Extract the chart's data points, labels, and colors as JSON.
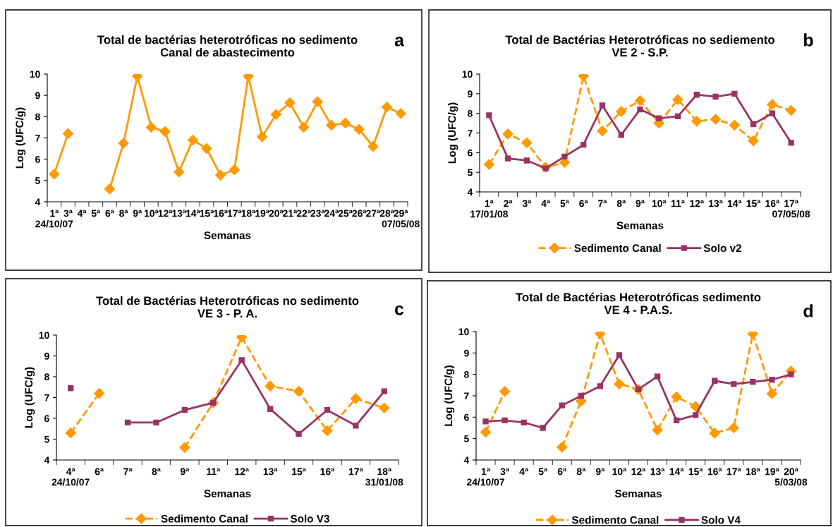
{
  "chart_data": [
    {
      "type": "line",
      "title": "Total de bactérias heterotróficas no sedimento\nCanal de abastecimento",
      "xlabel": "Semanas",
      "ylabel": "Log (UFC/g)",
      "annotations": [
        "a"
      ],
      "categories": [
        "1ª\n24/10/07",
        "3ª",
        "4ª",
        "5ª",
        "6ª",
        "8ª",
        "9ª",
        "10ª",
        "12ª",
        "13ª",
        "14ª",
        "15ª",
        "16ª",
        "17ª",
        "18ª",
        "19ª",
        "20ª",
        "21ª",
        "22ª",
        "23ª",
        "24ª",
        "25ª",
        "26ª",
        "27ª",
        "28ª",
        "29ª\n07/05/08"
      ],
      "series": [
        {
          "color": "#ff9900",
          "marker": "diamond",
          "line_style": "solid",
          "values": [
            5.3,
            7.2,
            null,
            null,
            4.6,
            6.75,
            9.9,
            7.5,
            7.3,
            5.4,
            6.9,
            6.5,
            5.25,
            5.5,
            9.9,
            7.05,
            8.1,
            8.65,
            7.5,
            8.7,
            7.6,
            7.7,
            7.4,
            6.6,
            8.45,
            8.15
          ]
        }
      ],
      "ylim": [
        4,
        10
      ],
      "yticks": [
        4,
        5,
        6,
        7,
        8,
        9,
        10
      ],
      "grid": false,
      "legend": false
    },
    {
      "type": "line",
      "title": "Total de Bactérias Heterotróficas no sediemento\nVE 2 - S.P.",
      "xlabel": "Semanas",
      "ylabel": "Log (UFC/g)",
      "annotations": [
        "b"
      ],
      "categories": [
        "1ª\n17/01/08",
        "2ª",
        "3ª",
        "4ª",
        "5ª",
        "6ª",
        "7ª",
        "8ª",
        "9ª",
        "10ª",
        "11ª",
        "12ª",
        "13ª",
        "14ª",
        "15ª",
        "16ª",
        "17ª\n07/05/08"
      ],
      "series": [
        {
          "name": "Sedimento Canal",
          "color": "#ff9900",
          "marker": "diamond",
          "line_style": "dashed",
          "values": [
            5.4,
            6.95,
            6.5,
            5.25,
            5.5,
            9.9,
            7.1,
            8.1,
            8.65,
            7.5,
            8.7,
            7.6,
            7.7,
            7.4,
            6.6,
            8.45,
            8.15
          ]
        },
        {
          "name": "Solo v2",
          "color": "#993366",
          "marker": "square",
          "line_style": "solid",
          "values": [
            7.9,
            5.7,
            5.6,
            5.2,
            5.8,
            6.4,
            8.4,
            6.9,
            8.2,
            7.75,
            7.85,
            8.95,
            8.85,
            9.0,
            7.45,
            8.0,
            6.5
          ]
        }
      ],
      "ylim": [
        4,
        10
      ],
      "yticks": [
        4,
        5,
        6,
        7,
        8,
        9,
        10
      ],
      "grid": false,
      "legend": "bottom"
    },
    {
      "type": "line",
      "title": "Total de Bactérias Heterotróficas no sedimento\nVE 3 - P. A.",
      "xlabel": "Semanas",
      "ylabel": "Log (UFC/g)",
      "annotations": [
        "c"
      ],
      "categories": [
        "4ª\n24/10/07",
        "6ª",
        "7ª",
        "8ª",
        "9ª",
        "11ª",
        "12ª",
        "13ª",
        "15ª",
        "16ª",
        "17ª",
        "18ª\n31/01/08"
      ],
      "series": [
        {
          "name": "Sedimento Canal",
          "color": "#ff9900",
          "marker": "diamond",
          "line_style": "dashed",
          "values": [
            5.3,
            7.2,
            null,
            null,
            4.6,
            6.75,
            9.9,
            7.55,
            7.3,
            5.4,
            6.95,
            6.5
          ]
        },
        {
          "name": "Solo V3",
          "color": "#993366",
          "marker": "square",
          "line_style": "solid",
          "values": [
            7.45,
            null,
            5.8,
            5.8,
            6.4,
            6.75,
            8.8,
            6.45,
            5.25,
            6.4,
            5.65,
            7.3
          ]
        }
      ],
      "ylim": [
        4,
        10
      ],
      "yticks": [
        4,
        5,
        6,
        7,
        8,
        9,
        10
      ],
      "grid": false,
      "legend": "bottom"
    },
    {
      "type": "line",
      "title": "Total de Bactérias Heterotróficas sedimento\nVE 4 - P.A.S.",
      "xlabel": "Semanas",
      "ylabel": "Log (UFC/g)",
      "annotations": [
        "d"
      ],
      "categories": [
        "1ª\n24/10/07",
        "3ª",
        "4ª",
        "5ª",
        "6ª",
        "8ª",
        "9ª",
        "10ª",
        "12ª",
        "13ª",
        "14ª",
        "15ª",
        "16ª",
        "17ª",
        "18ª",
        "19ª",
        "20ª\n5/03/08"
      ],
      "series": [
        {
          "name": "Sedimento Canal",
          "color": "#ff9900",
          "marker": "diamond",
          "line_style": "dashed",
          "values": [
            5.3,
            7.2,
            null,
            null,
            4.6,
            6.75,
            9.9,
            7.55,
            7.3,
            5.4,
            6.95,
            6.5,
            5.25,
            5.5,
            9.9,
            7.1,
            8.15
          ]
        },
        {
          "name": "Solo V4",
          "color": "#993366",
          "marker": "square",
          "line_style": "solid",
          "values": [
            5.8,
            5.85,
            5.75,
            5.5,
            6.55,
            7.0,
            7.45,
            8.9,
            7.3,
            7.9,
            5.85,
            6.1,
            7.7,
            7.55,
            7.65,
            7.75,
            8.0
          ]
        }
      ],
      "ylim": [
        4,
        10
      ],
      "yticks": [
        4,
        5,
        6,
        7,
        8,
        9,
        10
      ],
      "grid": false,
      "legend": "bottom"
    }
  ]
}
